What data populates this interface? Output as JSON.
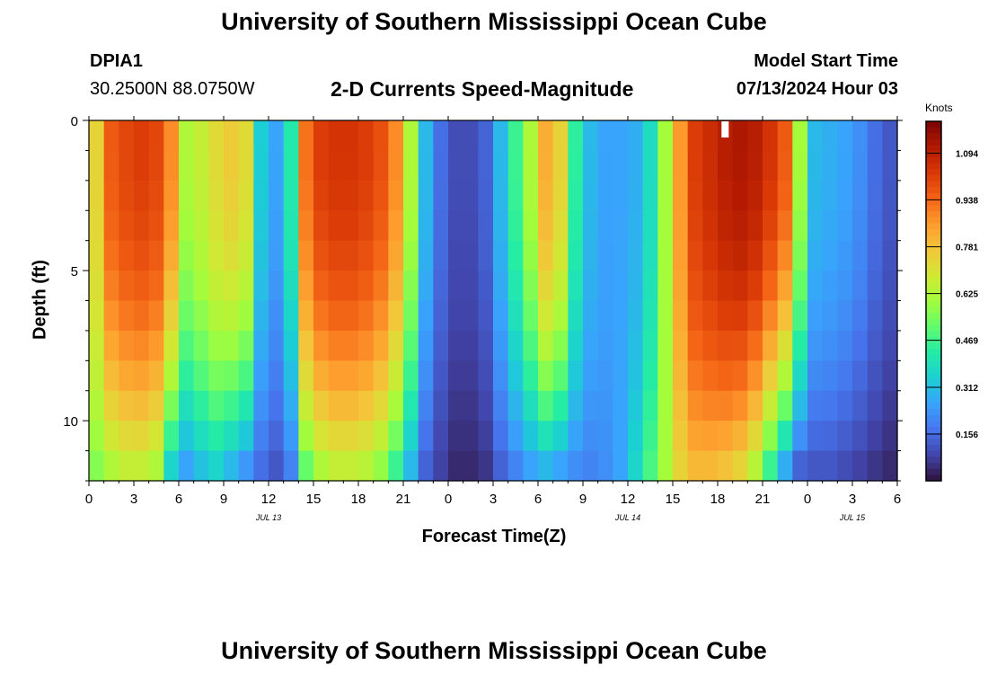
{
  "header": {
    "title": "University of Southern Mississippi Ocean Cube",
    "station_id": "DPIA1",
    "coordinates": "30.2500N  88.0750W",
    "product": "2-D Currents Speed-Magnitude",
    "model_start_label": "Model Start Time",
    "model_start_value": "07/13/2024 Hour 03"
  },
  "footer": {
    "title": "University of Southern Mississippi Ocean Cube"
  },
  "colors": {
    "speed_scale": [
      "#30123b",
      "#4145ab",
      "#4675ed",
      "#39a2fc",
      "#1bcfd4",
      "#24eca6",
      "#61fc6c",
      "#a4fc3b",
      "#d1e834",
      "#f3c63a",
      "#fe9b2d",
      "#f36315",
      "#d93806",
      "#b11901",
      "#7a0402"
    ],
    "marker": "#ffffff"
  },
  "chart_data": {
    "type": "heatmap",
    "xlabel": "Forecast Time(Z)",
    "ylabel": "Depth (ft)",
    "colorbar_label": "Knots",
    "x_range_hours": [
      0,
      54
    ],
    "y_range_ft": [
      0,
      12
    ],
    "x_ticks": [
      {
        "hour": 0,
        "label": "0"
      },
      {
        "hour": 3,
        "label": "3"
      },
      {
        "hour": 6,
        "label": "6"
      },
      {
        "hour": 9,
        "label": "9"
      },
      {
        "hour": 12,
        "label": "12"
      },
      {
        "hour": 15,
        "label": "15"
      },
      {
        "hour": 18,
        "label": "18"
      },
      {
        "hour": 21,
        "label": "21"
      },
      {
        "hour": 24,
        "label": "0"
      },
      {
        "hour": 27,
        "label": "3"
      },
      {
        "hour": 30,
        "label": "6"
      },
      {
        "hour": 33,
        "label": "9"
      },
      {
        "hour": 36,
        "label": "12"
      },
      {
        "hour": 39,
        "label": "15"
      },
      {
        "hour": 42,
        "label": "18"
      },
      {
        "hour": 45,
        "label": "21"
      },
      {
        "hour": 48,
        "label": "0"
      },
      {
        "hour": 51,
        "label": "3"
      },
      {
        "hour": 54,
        "label": "6"
      }
    ],
    "date_labels": [
      {
        "hour": 12,
        "label": "JUL 13"
      },
      {
        "hour": 36,
        "label": "JUL 14"
      },
      {
        "hour": 51,
        "label": "JUL 15"
      }
    ],
    "y_ticks": [
      {
        "depth": 0,
        "label": "0"
      },
      {
        "depth": 5,
        "label": "5"
      },
      {
        "depth": 10,
        "label": "10"
      }
    ],
    "colorbar_range": [
      0.0,
      1.2
    ],
    "colorbar_ticks": [
      "1.094",
      "0.938",
      "0.781",
      "0.625",
      "0.469",
      "0.312",
      "0.156"
    ],
    "colorbar_tick_values": [
      1.094,
      0.938,
      0.781,
      0.625,
      0.469,
      0.312,
      0.156
    ],
    "n_time_steps": 54,
    "n_depth_layers": 12,
    "marker_hour": 42.5,
    "surface_speed_knots": [
      0.74,
      0.96,
      1.0,
      1.02,
      1.0,
      0.88,
      0.62,
      0.66,
      0.72,
      0.76,
      0.72,
      0.34,
      0.26,
      0.42,
      0.92,
      1.02,
      1.04,
      1.04,
      1.02,
      0.98,
      0.88,
      0.62,
      0.3,
      0.16,
      0.1,
      0.1,
      0.14,
      0.3,
      0.46,
      0.62,
      0.82,
      0.74,
      0.44,
      0.3,
      0.26,
      0.26,
      0.28,
      0.38,
      0.6,
      0.86,
      1.02,
      1.06,
      1.1,
      1.12,
      1.1,
      1.04,
      0.96,
      0.6,
      0.3,
      0.28,
      0.26,
      0.22,
      0.16,
      0.12
    ],
    "bottom_speed_knots": [
      0.56,
      0.62,
      0.66,
      0.66,
      0.62,
      0.36,
      0.26,
      0.32,
      0.36,
      0.3,
      0.24,
      0.16,
      0.12,
      0.2,
      0.52,
      0.62,
      0.66,
      0.66,
      0.64,
      0.58,
      0.46,
      0.3,
      0.14,
      0.08,
      0.04,
      0.04,
      0.06,
      0.14,
      0.2,
      0.26,
      0.3,
      0.26,
      0.22,
      0.2,
      0.22,
      0.26,
      0.36,
      0.48,
      0.6,
      0.74,
      0.8,
      0.8,
      0.78,
      0.74,
      0.64,
      0.46,
      0.28,
      0.14,
      0.12,
      0.12,
      0.1,
      0.08,
      0.06,
      0.04
    ]
  }
}
